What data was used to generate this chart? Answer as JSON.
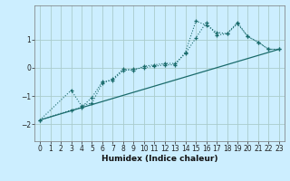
{
  "xlabel": "Humidex (Indice chaleur)",
  "bg_color": "#cceeff",
  "grid_color": "#aacccc",
  "line_color": "#1a6b6b",
  "xlim": [
    -0.5,
    23.5
  ],
  "ylim": [
    -2.6,
    2.2
  ],
  "xticks": [
    0,
    1,
    2,
    3,
    4,
    5,
    6,
    7,
    8,
    9,
    10,
    11,
    12,
    13,
    14,
    15,
    16,
    17,
    18,
    19,
    20,
    21,
    22,
    23
  ],
  "yticks": [
    -2,
    -1,
    0,
    1
  ],
  "series1_x": [
    0,
    3,
    4,
    5,
    6,
    7,
    8,
    9,
    10,
    11,
    12,
    13,
    14,
    15,
    16,
    17,
    18,
    19,
    20,
    21,
    22,
    23
  ],
  "series1_y": [
    -1.85,
    -1.5,
    -1.4,
    -1.05,
    -0.5,
    -0.45,
    -0.1,
    -0.05,
    0.0,
    0.05,
    0.1,
    0.1,
    0.55,
    1.65,
    1.5,
    1.25,
    1.2,
    1.55,
    1.1,
    0.9,
    0.65,
    0.65
  ],
  "series2_x": [
    0,
    3,
    4,
    5,
    6,
    7,
    8,
    9,
    10,
    11,
    12,
    13,
    14,
    15,
    16,
    17,
    18,
    19,
    20,
    21,
    22,
    23
  ],
  "series2_y": [
    -1.85,
    -0.8,
    -1.35,
    -1.25,
    -0.55,
    -0.4,
    -0.05,
    -0.1,
    0.05,
    0.1,
    0.15,
    0.15,
    0.5,
    1.05,
    1.6,
    1.15,
    1.2,
    1.6,
    1.1,
    0.9,
    0.65,
    0.65
  ],
  "series3_x": [
    0,
    23
  ],
  "series3_y": [
    -1.85,
    0.65
  ]
}
